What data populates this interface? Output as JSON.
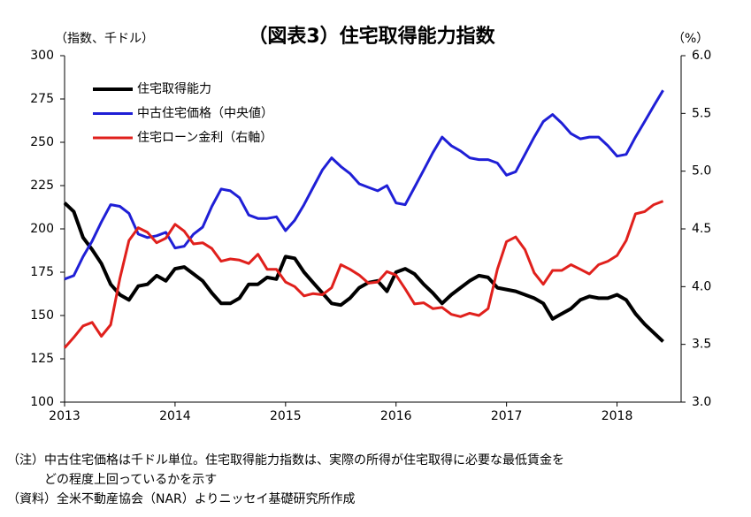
{
  "chart_data": {
    "type": "line",
    "title": "（図表3）住宅取得能力指数",
    "y_label": "（指数、千ドル）",
    "y2_label": "（%）",
    "xlim": [
      2013,
      2018.58
    ],
    "xticks": [
      2013,
      2014,
      2015,
      2016,
      2017,
      2018
    ],
    "ylim": [
      100,
      300
    ],
    "yticks": [
      100,
      125,
      150,
      175,
      200,
      225,
      250,
      275,
      300
    ],
    "y2lim": [
      3,
      6
    ],
    "y2ticks": [
      {
        "value": 3,
        "label": "3.0"
      },
      3.5,
      {
        "value": 4,
        "label": "4.0"
      },
      4.5,
      {
        "value": 5,
        "label": "5.0"
      },
      5.5,
      {
        "value": 6,
        "label": "6.0"
      }
    ],
    "legend": "upper left",
    "x": [
      2013.0,
      2013.083,
      2013.167,
      2013.25,
      2013.333,
      2013.417,
      2013.5,
      2013.583,
      2013.667,
      2013.75,
      2013.833,
      2013.917,
      2014.0,
      2014.083,
      2014.167,
      2014.25,
      2014.333,
      2014.417,
      2014.5,
      2014.583,
      2014.667,
      2014.75,
      2014.833,
      2014.917,
      2015.0,
      2015.083,
      2015.167,
      2015.25,
      2015.333,
      2015.417,
      2015.5,
      2015.583,
      2015.667,
      2015.75,
      2015.833,
      2015.917,
      2016.0,
      2016.083,
      2016.167,
      2016.25,
      2016.333,
      2016.417,
      2016.5,
      2016.583,
      2016.667,
      2016.75,
      2016.833,
      2016.917,
      2017.0,
      2017.083,
      2017.167,
      2017.25,
      2017.333,
      2017.417,
      2017.5,
      2017.583,
      2017.667,
      2017.75,
      2017.833,
      2017.917,
      2018.0,
      2018.083,
      2018.167,
      2018.25,
      2018.333,
      2018.417
    ],
    "series": [
      {
        "name": "住宅取得能力",
        "color": "#000000",
        "width": 4,
        "values": [
          215,
          210,
          195,
          188,
          180,
          168,
          162,
          159,
          167,
          168,
          173,
          170,
          177,
          178,
          174,
          170,
          163,
          157,
          157,
          160,
          168,
          168,
          172,
          171,
          184,
          183,
          175,
          169,
          163,
          157,
          156,
          160,
          166,
          169,
          170,
          164,
          175,
          177,
          174,
          168,
          163,
          157,
          162,
          166,
          170,
          173,
          172,
          166,
          165,
          164,
          162,
          160,
          157,
          148,
          151,
          154,
          159,
          161,
          160,
          160,
          162,
          159,
          151,
          145,
          140,
          135
        ]
      },
      {
        "name": "中古住宅価格（中央値）",
        "color": "#1f1fd6",
        "width": 3,
        "values": [
          171,
          173,
          184,
          193,
          204,
          214,
          213,
          209,
          197,
          195,
          196,
          198,
          189,
          190,
          197,
          201,
          213,
          223,
          222,
          218,
          208,
          206,
          206,
          207,
          199,
          205,
          214,
          224,
          234,
          241,
          236,
          232,
          226,
          224,
          222,
          225,
          215,
          214,
          224,
          234,
          244,
          253,
          248,
          245,
          241,
          240,
          240,
          238,
          231,
          233,
          243,
          253,
          262,
          266,
          261,
          255,
          252,
          253,
          253,
          248,
          242,
          243,
          253,
          262,
          271,
          280
        ]
      },
      {
        "name": "住宅ローン金利（右軸）",
        "color": "#e0201c",
        "width": 3,
        "axis": "y2",
        "values": [
          3.47,
          3.56,
          3.66,
          3.69,
          3.57,
          3.67,
          4.07,
          4.4,
          4.51,
          4.47,
          4.38,
          4.42,
          4.54,
          4.48,
          4.37,
          4.38,
          4.33,
          4.22,
          4.24,
          4.23,
          4.2,
          4.28,
          4.15,
          4.15,
          4.04,
          4.0,
          3.92,
          3.94,
          3.93,
          3.99,
          4.19,
          4.15,
          4.1,
          4.03,
          4.04,
          4.13,
          4.1,
          3.98,
          3.85,
          3.86,
          3.81,
          3.82,
          3.76,
          3.74,
          3.77,
          3.75,
          3.81,
          4.15,
          4.39,
          4.43,
          4.32,
          4.12,
          4.02,
          4.14,
          4.14,
          4.19,
          4.15,
          4.11,
          4.19,
          4.22,
          4.27,
          4.4,
          4.63,
          4.65,
          4.71,
          4.74
        ]
      }
    ],
    "notes": [
      "（注）中古住宅価格は千ドル単位。住宅取得能力指数は、実際の所得が住宅取得に必要な最低賃金を",
      "どの程度上回っているかを示す",
      "（資料）全米不動産協会（NAR）よりニッセイ基礎研究所作成"
    ]
  }
}
